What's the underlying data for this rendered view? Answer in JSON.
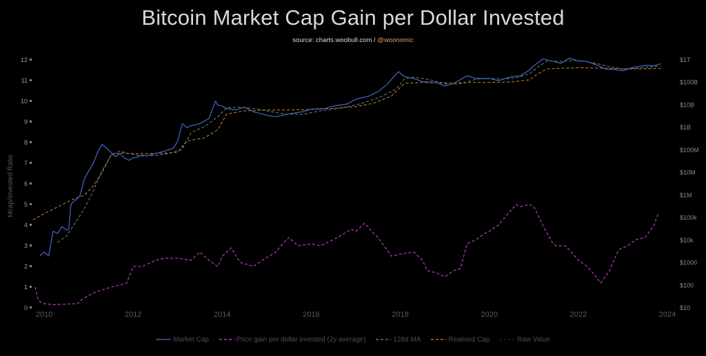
{
  "title": "Bitcoin Market Cap Gain per Dollar Invested",
  "source_prefix": "source: charts.woobull.com / ",
  "source_handle": "@woonomic",
  "colors": {
    "market_cap": "#3d5bb0",
    "price_gain": "#b03aba",
    "ma128": "#6b8f8a",
    "realised_cap": "#d98a24",
    "raw_value": "#333333"
  },
  "chart_data": {
    "type": "line",
    "title": "Bitcoin Market Cap Gain per Dollar Invested",
    "ylabel_left": "Mcap/Invested Ratio",
    "xlim": [
      2009.75,
      2024.0
    ],
    "ylim_left": [
      0,
      12
    ],
    "left_ticks": [
      "0",
      "1",
      "2",
      "3",
      "4",
      "5",
      "6",
      "7",
      "8",
      "9",
      "10",
      "11",
      "12"
    ],
    "right_scale": "log",
    "right_ticks": [
      "$10",
      "$100",
      "$1000",
      "$10k",
      "$100k",
      "$1M",
      "$10M",
      "$100M",
      "$1B",
      "$10B",
      "$100B",
      "$1T"
    ],
    "x_ticks": [
      "2010",
      "2012",
      "2014",
      "2016",
      "2018",
      "2020",
      "2022",
      "2024"
    ],
    "grid": false,
    "legend": "bottom",
    "series": [
      {
        "name": "Market Cap",
        "axis": "right",
        "x": [
          2009.9,
          2010.0,
          2010.1,
          2010.2,
          2010.3,
          2010.4,
          2010.5,
          2010.55,
          2010.6,
          2010.7,
          2010.8,
          2010.9,
          2011.0,
          2011.1,
          2011.2,
          2011.3,
          2011.4,
          2011.5,
          2011.6,
          2011.7,
          2011.8,
          2011.9,
          2012.0,
          2012.1,
          2012.2,
          2012.3,
          2012.5,
          2012.7,
          2012.9,
          2013.0,
          2013.1,
          2013.2,
          2013.3,
          2013.5,
          2013.7,
          2013.85,
          2013.9,
          2014.0,
          2014.1,
          2014.3,
          2014.5,
          2014.7,
          2014.9,
          2015.0,
          2015.2,
          2015.5,
          2015.8,
          2016.0,
          2016.3,
          2016.5,
          2016.8,
          2017.0,
          2017.3,
          2017.5,
          2017.7,
          2017.9,
          2017.96,
          2018.1,
          2018.3,
          2018.5,
          2018.8,
          2019.0,
          2019.2,
          2019.5,
          2019.7,
          2020.0,
          2020.2,
          2020.5,
          2020.7,
          2020.9,
          2021.0,
          2021.2,
          2021.4,
          2021.6,
          2021.8,
          2022.0,
          2022.2,
          2022.4,
          2022.6,
          2022.8,
          2023.0,
          2023.2,
          2023.5,
          2023.7,
          2023.85
        ],
        "values": [
          2000,
          3000,
          2000,
          25000,
          20000,
          40000,
          28000,
          30000,
          400000,
          600000,
          900000,
          5000000,
          12000000,
          25000000,
          80000000,
          180000000,
          120000000,
          80000000,
          50000000,
          70000000,
          45000000,
          35000000,
          45000000,
          50000000,
          60000000,
          55000000,
          70000000,
          90000000,
          120000000,
          250000000,
          1500000000,
          1000000000,
          1200000000,
          1500000000,
          2500000000,
          15000000000,
          10000000000,
          9000000000,
          7000000000,
          6000000000,
          8000000000,
          5000000000,
          4000000000,
          3500000000,
          3000000000,
          4000000000,
          5000000000,
          6500000000,
          7000000000,
          9000000000,
          11000000000,
          18000000000,
          25000000000,
          40000000000,
          80000000000,
          230000000000,
          300000000000,
          180000000000,
          150000000000,
          110000000000,
          100000000000,
          70000000000,
          90000000000,
          200000000000,
          150000000000,
          150000000000,
          120000000000,
          180000000000,
          200000000000,
          350000000000,
          550000000000,
          1100000000000,
          900000000000,
          700000000000,
          1200000000000,
          900000000000,
          850000000000,
          600000000000,
          400000000000,
          380000000000,
          330000000000,
          450000000000,
          570000000000,
          550000000000,
          680000000000
        ]
      },
      {
        "name": "Price gain per dollar invested (2y average)",
        "axis": "left",
        "x": [
          2009.8,
          2009.85,
          2009.9,
          2010.0,
          2010.2,
          2010.5,
          2010.75,
          2010.85,
          2011.0,
          2011.2,
          2011.5,
          2011.7,
          2011.85,
          2012.0,
          2012.2,
          2012.5,
          2012.7,
          2013.0,
          2013.3,
          2013.5,
          2013.7,
          2013.9,
          2014.0,
          2014.2,
          2014.4,
          2014.7,
          2014.9,
          2015.2,
          2015.4,
          2015.5,
          2015.7,
          2016.0,
          2016.2,
          2016.5,
          2016.9,
          2017.0,
          2017.2,
          2017.4,
          2017.5,
          2017.8,
          2018.0,
          2018.3,
          2018.5,
          2018.6,
          2018.8,
          2018.9,
          2019.0,
          2019.2,
          2019.35,
          2019.5,
          2019.7,
          2019.9,
          2020.0,
          2020.2,
          2020.4,
          2020.6,
          2020.7,
          2020.9,
          2021.0,
          2021.2,
          2021.4,
          2021.5,
          2021.7,
          2021.8,
          2022.0,
          2022.2,
          2022.4,
          2022.5,
          2022.7,
          2022.9,
          2023.1,
          2023.3,
          2023.5,
          2023.7,
          2023.8
        ],
        "values": [
          1.0,
          0.5,
          0.3,
          0.2,
          0.15,
          0.18,
          0.2,
          0.4,
          0.6,
          0.8,
          1.0,
          1.1,
          1.2,
          2.0,
          2.0,
          2.3,
          2.4,
          2.4,
          2.3,
          2.7,
          2.3,
          2.0,
          2.5,
          2.9,
          2.2,
          2.0,
          2.3,
          2.7,
          3.2,
          3.4,
          3.0,
          3.1,
          3.0,
          3.3,
          3.8,
          3.7,
          4.1,
          3.6,
          3.4,
          2.5,
          2.6,
          2.7,
          2.3,
          1.8,
          1.7,
          1.6,
          1.5,
          1.8,
          1.9,
          3.1,
          3.3,
          3.6,
          3.7,
          4.0,
          4.5,
          5.0,
          4.9,
          5.0,
          4.9,
          4.0,
          3.2,
          3.0,
          3.0,
          2.8,
          2.3,
          2.0,
          1.5,
          1.2,
          1.8,
          2.8,
          3.0,
          3.3,
          3.4,
          4.0,
          4.6
        ]
      },
      {
        "name": "128d MA",
        "axis": "right",
        "x": [
          2010.3,
          2010.5,
          2010.7,
          2010.9,
          2011.1,
          2011.3,
          2011.5,
          2011.7,
          2011.9,
          2012.2,
          2012.5,
          2012.8,
          2013.1,
          2013.3,
          2013.6,
          2013.9,
          2014.1,
          2014.4,
          2014.7,
          2015.0,
          2015.4,
          2015.8,
          2016.2,
          2016.6,
          2017.0,
          2017.3,
          2017.6,
          2017.9,
          2018.1,
          2018.3,
          2018.6,
          2018.9,
          2019.1,
          2019.4,
          2019.7,
          2020.0,
          2020.3,
          2020.6,
          2020.9,
          2021.1,
          2021.3,
          2021.6,
          2021.9,
          2022.1,
          2022.4,
          2022.7,
          2023.0,
          2023.3,
          2023.6,
          2023.85
        ],
        "values": [
          8000,
          15000,
          60000,
          250000,
          1500000,
          12000000,
          60000000,
          90000000,
          70000000,
          55000000,
          58000000,
          70000000,
          110000000,
          600000000,
          1100000000,
          3000000000,
          7500000000,
          8000000000,
          7000000000,
          5500000000,
          4000000000,
          3800000000,
          5500000000,
          7000000000,
          10000000000,
          15000000000,
          25000000000,
          50000000000,
          150000000000,
          170000000000,
          140000000000,
          100000000000,
          80000000000,
          90000000000,
          140000000000,
          150000000000,
          140000000000,
          160000000000,
          240000000000,
          500000000000,
          900000000000,
          850000000000,
          950000000000,
          900000000000,
          700000000000,
          500000000000,
          400000000000,
          420000000000,
          480000000000,
          550000000000
        ]
      },
      {
        "name": "Realised Cap",
        "axis": "right",
        "x": [
          2009.75,
          2010.0,
          2010.3,
          2010.6,
          2010.9,
          2011.1,
          2011.3,
          2011.5,
          2011.7,
          2012.0,
          2012.4,
          2012.8,
          2013.0,
          2013.2,
          2013.6,
          2013.9,
          2014.1,
          2014.5,
          2015.0,
          2015.5,
          2016.0,
          2016.5,
          2017.0,
          2017.4,
          2017.8,
          2018.0,
          2018.1,
          2018.5,
          2019.0,
          2019.5,
          2020.0,
          2020.5,
          2020.9,
          2021.1,
          2021.3,
          2021.6,
          2022.0,
          2022.5,
          2023.0,
          2023.5,
          2023.85
        ],
        "values": [
          80000,
          150000,
          300000,
          600000,
          1000000,
          2500000,
          10000000,
          60000000,
          75000000,
          70000000,
          70000000,
          75000000,
          80000000,
          250000000,
          350000000,
          800000000,
          4000000000,
          5500000000,
          6000000000,
          6000000000,
          6300000000,
          7000000000,
          8500000000,
          12000000000,
          25000000000,
          60000000000,
          90000000000,
          100000000000,
          95000000000,
          100000000000,
          100000000000,
          105000000000,
          130000000000,
          250000000000,
          400000000000,
          420000000000,
          450000000000,
          430000000000,
          400000000000,
          400000000000,
          420000000000
        ]
      }
    ],
    "raw_value_legend_only": "Raw Value"
  },
  "legend": {
    "market_cap": "Market Cap",
    "price_gain": "Price gain per dollar invested (2y average)",
    "ma128": "128d MA",
    "realised_cap": "Realised Cap",
    "raw_value": "Raw Value"
  }
}
